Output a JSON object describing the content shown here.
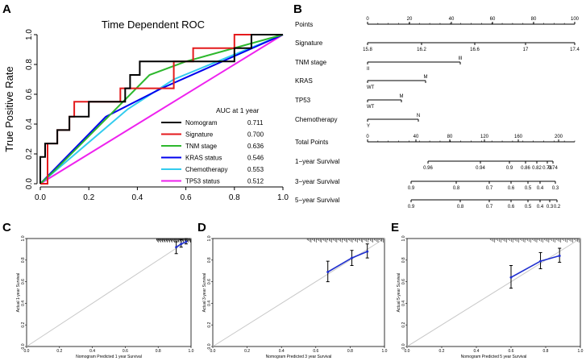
{
  "panel_labels": {
    "a": "A",
    "b": "B",
    "c": "C",
    "d": "D",
    "e": "E"
  },
  "chart_data": [
    {
      "type": "line",
      "panel": "A",
      "title": "Time Dependent ROC",
      "xlabel": "",
      "ylabel": "True Positive Rate",
      "xlim": [
        0,
        1
      ],
      "ylim": [
        0,
        1
      ],
      "xticks": [
        "0.0",
        "0.2",
        "0.4",
        "0.6",
        "0.8",
        "1.0"
      ],
      "yticks": [
        "0.0",
        "0.2",
        "0.4",
        "0.6",
        "0.8",
        "1.0"
      ],
      "legend_header": "AUC at 1 year",
      "legend_position": "bottom-right",
      "series": [
        {
          "name": "Nomogram",
          "auc": "0.711",
          "color": "#000000",
          "points": [
            [
              0,
              0
            ],
            [
              0,
              0.1
            ],
            [
              0,
              0.18
            ],
            [
              0.02,
              0.18
            ],
            [
              0.02,
              0.27
            ],
            [
              0.07,
              0.27
            ],
            [
              0.07,
              0.36
            ],
            [
              0.12,
              0.36
            ],
            [
              0.12,
              0.45
            ],
            [
              0.2,
              0.45
            ],
            [
              0.2,
              0.55
            ],
            [
              0.35,
              0.55
            ],
            [
              0.35,
              0.64
            ],
            [
              0.37,
              0.64
            ],
            [
              0.37,
              0.73
            ],
            [
              0.41,
              0.73
            ],
            [
              0.41,
              0.82
            ],
            [
              0.57,
              0.82
            ],
            [
              0.57,
              0.82
            ],
            [
              0.8,
              0.82
            ],
            [
              0.8,
              0.91
            ],
            [
              0.87,
              0.91
            ],
            [
              0.87,
              1
            ],
            [
              1,
              1
            ]
          ]
        },
        {
          "name": "Signature",
          "auc": "0.700",
          "color": "#e41a1c",
          "points": [
            [
              0,
              0
            ],
            [
              0.03,
              0
            ],
            [
              0.03,
              0.27
            ],
            [
              0.07,
              0.27
            ],
            [
              0.07,
              0.36
            ],
            [
              0.12,
              0.36
            ],
            [
              0.12,
              0.45
            ],
            [
              0.14,
              0.45
            ],
            [
              0.14,
              0.55
            ],
            [
              0.24,
              0.55
            ],
            [
              0.24,
              0.55
            ],
            [
              0.33,
              0.55
            ],
            [
              0.33,
              0.64
            ],
            [
              0.55,
              0.64
            ],
            [
              0.55,
              0.82
            ],
            [
              0.63,
              0.82
            ],
            [
              0.63,
              0.91
            ],
            [
              0.8,
              0.91
            ],
            [
              0.8,
              1
            ],
            [
              1,
              1
            ]
          ]
        },
        {
          "name": "TNM stage",
          "auc": "0.636",
          "color": "#2db82d",
          "points": [
            [
              0,
              0
            ],
            [
              0.06,
              0.09
            ],
            [
              0.28,
              0.45
            ],
            [
              0.45,
              0.73
            ],
            [
              0.6,
              0.82
            ],
            [
              1,
              1
            ]
          ]
        },
        {
          "name": "KRAS status",
          "auc": "0.546",
          "color": "#0000ee",
          "points": [
            [
              0,
              0
            ],
            [
              0.27,
              0.45
            ],
            [
              0.5,
              0.64
            ],
            [
              1,
              1
            ]
          ]
        },
        {
          "name": "Chemotherapy",
          "auc": "0.553",
          "color": "#33ccee",
          "points": [
            [
              0,
              0
            ],
            [
              0.36,
              0.5
            ],
            [
              0.55,
              0.7
            ],
            [
              1,
              1
            ]
          ]
        },
        {
          "name": "TP53 status",
          "auc": "0.512",
          "color": "#ee22ee",
          "points": [
            [
              0,
              0
            ],
            [
              1,
              1
            ]
          ]
        }
      ]
    },
    {
      "type": "nomogram",
      "panel": "B",
      "rows": [
        {
          "label": "Points",
          "ticks": [
            "0",
            "20",
            "40",
            "60",
            "80",
            "100"
          ]
        },
        {
          "label": "Signature",
          "ticks": [
            "15.8",
            "16.2",
            "16.6",
            "17",
            "17.4"
          ]
        },
        {
          "label": "TNM stage",
          "ticks": [
            "II",
            "III"
          ]
        },
        {
          "label": "KRAS",
          "ticks": [
            "WT",
            "M"
          ]
        },
        {
          "label": "TP53",
          "ticks": [
            "WT",
            "M"
          ]
        },
        {
          "label": "Chemotherapy",
          "ticks": [
            "Y",
            "N"
          ]
        },
        {
          "label": "Total Points",
          "ticks": [
            "0",
            "40",
            "80",
            "120",
            "160",
            "200"
          ]
        },
        {
          "label": "1−year Survival",
          "ticks": [
            "0.96",
            "0.94",
            "0.9",
            "0.86",
            "0.82",
            "0.78",
            "0.74"
          ]
        },
        {
          "label": "3−year Survival",
          "ticks": [
            "0.9",
            "0.8",
            "0.7",
            "0.6",
            "0.5",
            "0.4",
            "0.3"
          ]
        },
        {
          "label": "5−year Survival",
          "ticks": [
            "0.9",
            "0.8",
            "0.7",
            "0.6",
            "0.5",
            "0.4",
            "0.3",
            "0.2"
          ]
        }
      ]
    },
    {
      "type": "scatter",
      "panel": "C",
      "xlabel": "Nomogram Predicted 1 year Survival",
      "ylabel": "Actual 1-year Survival",
      "xlim": [
        0,
        1
      ],
      "ylim": [
        0,
        1
      ],
      "ticks": [
        "0.0",
        "0.2",
        "0.4",
        "0.6",
        "0.8",
        "1.0"
      ],
      "points": [
        {
          "x": 0.91,
          "y": 0.92,
          "lo": 0.86,
          "hi": 0.97
        },
        {
          "x": 0.94,
          "y": 0.95,
          "lo": 0.92,
          "hi": 0.99
        },
        {
          "x": 0.97,
          "y": 0.97,
          "lo": 0.95,
          "hi": 1.0
        }
      ]
    },
    {
      "type": "scatter",
      "panel": "D",
      "xlabel": "Nomogram Predicted 3 year Survival",
      "ylabel": "Actual 3-year Survival",
      "xlim": [
        0,
        1
      ],
      "ylim": [
        0,
        1
      ],
      "ticks": [
        "0.0",
        "0.2",
        "0.4",
        "0.6",
        "0.8",
        "1.0"
      ],
      "points": [
        {
          "x": 0.67,
          "y": 0.69,
          "lo": 0.6,
          "hi": 0.79
        },
        {
          "x": 0.81,
          "y": 0.82,
          "lo": 0.75,
          "hi": 0.89
        },
        {
          "x": 0.9,
          "y": 0.88,
          "lo": 0.82,
          "hi": 0.95
        }
      ]
    },
    {
      "type": "scatter",
      "panel": "E",
      "xlabel": "Nomogram Predicted 5 year Survival",
      "ylabel": "Actual 5-year Survival",
      "xlim": [
        0,
        1
      ],
      "ylim": [
        0,
        1
      ],
      "ticks": [
        "0.0",
        "0.2",
        "0.4",
        "0.6",
        "0.8",
        "1.0"
      ],
      "points": [
        {
          "x": 0.6,
          "y": 0.64,
          "lo": 0.54,
          "hi": 0.75
        },
        {
          "x": 0.77,
          "y": 0.79,
          "lo": 0.72,
          "hi": 0.87
        },
        {
          "x": 0.88,
          "y": 0.84,
          "lo": 0.78,
          "hi": 0.91
        }
      ]
    }
  ]
}
